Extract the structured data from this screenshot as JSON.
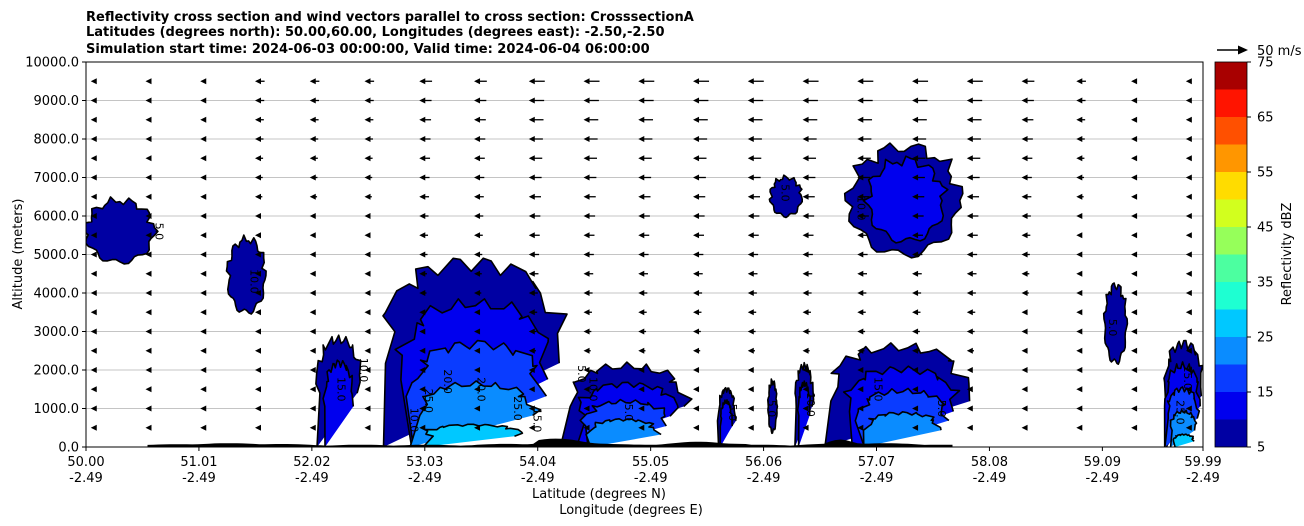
{
  "chart_data": {
    "type": "heatmap",
    "title_lines": [
      "Reflectivity cross section and wind vectors parallel to cross section: CrosssectionA",
      "Latitudes (degrees north): 50.00,60.00, Longitudes (degrees east): -2.50,-2.50",
      "Simulation start time: 2024-06-03 00:00:00, Valid time: 2024-06-04 06:00:00"
    ],
    "xlabel": "Latitude (degrees N)",
    "xlabel2": "Longitude (degrees E)",
    "ylabel": "Altitude (meters)",
    "xlim": [
      50.0,
      59.99
    ],
    "ylim": [
      0,
      10000
    ],
    "x_ticks": [
      {
        "value": 50.0,
        "lat": "50.00",
        "lon": "-2.49"
      },
      {
        "value": 51.01,
        "lat": "51.01",
        "lon": "-2.49"
      },
      {
        "value": 52.02,
        "lat": "52.02",
        "lon": "-2.49"
      },
      {
        "value": 53.03,
        "lat": "53.03",
        "lon": "-2.49"
      },
      {
        "value": 54.04,
        "lat": "54.04",
        "lon": "-2.49"
      },
      {
        "value": 55.05,
        "lat": "55.05",
        "lon": "-2.49"
      },
      {
        "value": 56.06,
        "lat": "56.06",
        "lon": "-2.49"
      },
      {
        "value": 57.07,
        "lat": "57.07",
        "lon": "-2.49"
      },
      {
        "value": 58.08,
        "lat": "58.08",
        "lon": "-2.49"
      },
      {
        "value": 59.09,
        "lat": "59.09",
        "lon": "-2.49"
      },
      {
        "value": 59.99,
        "lat": "59.99",
        "lon": "-2.49"
      }
    ],
    "y_ticks": [
      {
        "value": 0,
        "label": "0.0"
      },
      {
        "value": 1000,
        "label": "1000.0"
      },
      {
        "value": 2000,
        "label": "2000.0"
      },
      {
        "value": 3000,
        "label": "3000.0"
      },
      {
        "value": 4000,
        "label": "4000.0"
      },
      {
        "value": 5000,
        "label": "5000.0"
      },
      {
        "value": 6000,
        "label": "6000.0"
      },
      {
        "value": 7000,
        "label": "7000.0"
      },
      {
        "value": 8000,
        "label": "8000.0"
      },
      {
        "value": 9000,
        "label": "9000.0"
      },
      {
        "value": 10000,
        "label": "10000.0"
      }
    ],
    "grid": "horizontal",
    "colorbar": {
      "label": "Reflectivity dBZ",
      "levels": [
        5,
        10,
        15,
        20,
        25,
        30,
        35,
        40,
        45,
        50,
        55,
        60,
        65,
        70,
        75
      ],
      "colors": [
        "#0000a3",
        "#0000ee",
        "#0a3cff",
        "#0a8cff",
        "#00c8ff",
        "#1effd2",
        "#4cffa0",
        "#96ff5a",
        "#d2ff1e",
        "#ffdc00",
        "#ff9600",
        "#ff5000",
        "#ff1400",
        "#a80000"
      ],
      "tick_labels": [
        "5",
        "15",
        "25",
        "35",
        "45",
        "55",
        "65",
        "75"
      ]
    },
    "wind_reference": {
      "label": "50 m/s",
      "speed": 50
    },
    "wind_vectors": {
      "direction": "toward decreasing latitude",
      "levels_m": [
        500,
        1000,
        1500,
        2000,
        2500,
        3000,
        3500,
        4000,
        4500,
        5000,
        5500,
        6000,
        6500,
        7000,
        7500,
        8000,
        8500,
        9000,
        9500
      ],
      "speed_at_top_m_s": [
        5,
        10,
        10,
        15,
        15,
        15,
        20,
        20,
        25,
        25,
        25,
        25,
        25,
        25,
        25,
        25,
        25,
        20,
        15,
        10,
        5
      ]
    },
    "cells": [
      {
        "x": [
          50.0,
          50.62
        ],
        "y": [
          4800,
          6400
        ],
        "max_dbz": 10
      },
      {
        "x": [
          51.28,
          51.6
        ],
        "y": [
          3500,
          5400
        ],
        "max_dbz": 10
      },
      {
        "x": [
          52.08,
          52.45
        ],
        "y": [
          0,
          2800
        ],
        "max_dbz": 15
      },
      {
        "x": [
          52.66,
          54.28
        ],
        "y": [
          0,
          4800
        ],
        "max_dbz": 30
      },
      {
        "x": [
          54.28,
          55.35
        ],
        "y": [
          0,
          2100
        ],
        "max_dbz": 25
      },
      {
        "x": [
          55.65,
          55.8
        ],
        "y": [
          0,
          1500
        ],
        "max_dbz": 15
      },
      {
        "x": [
          56.1,
          56.18
        ],
        "y": [
          400,
          1700
        ],
        "max_dbz": 10
      },
      {
        "x": [
          56.13,
          56.4
        ],
        "y": [
          6000,
          7000
        ],
        "max_dbz": 10
      },
      {
        "x": [
          56.35,
          56.5
        ],
        "y": [
          0,
          2100
        ],
        "max_dbz": 15
      },
      {
        "x": [
          56.68,
          57.9
        ],
        "y": [
          0,
          2600
        ],
        "max_dbz": 25
      },
      {
        "x": [
          56.8,
          57.82
        ],
        "y": [
          5000,
          7800
        ],
        "max_dbz": 15
      },
      {
        "x": [
          59.1,
          59.3
        ],
        "y": [
          2200,
          4200
        ],
        "max_dbz": 10
      },
      {
        "x": [
          59.64,
          59.99
        ],
        "y": [
          0,
          2700
        ],
        "max_dbz": 30
      }
    ],
    "contour_labels": [
      "5.0",
      "10.0",
      "15.0",
      "20.0",
      "25.0"
    ],
    "terrain": "dark profile along the lower boundary between 50.6 and 57.7"
  }
}
